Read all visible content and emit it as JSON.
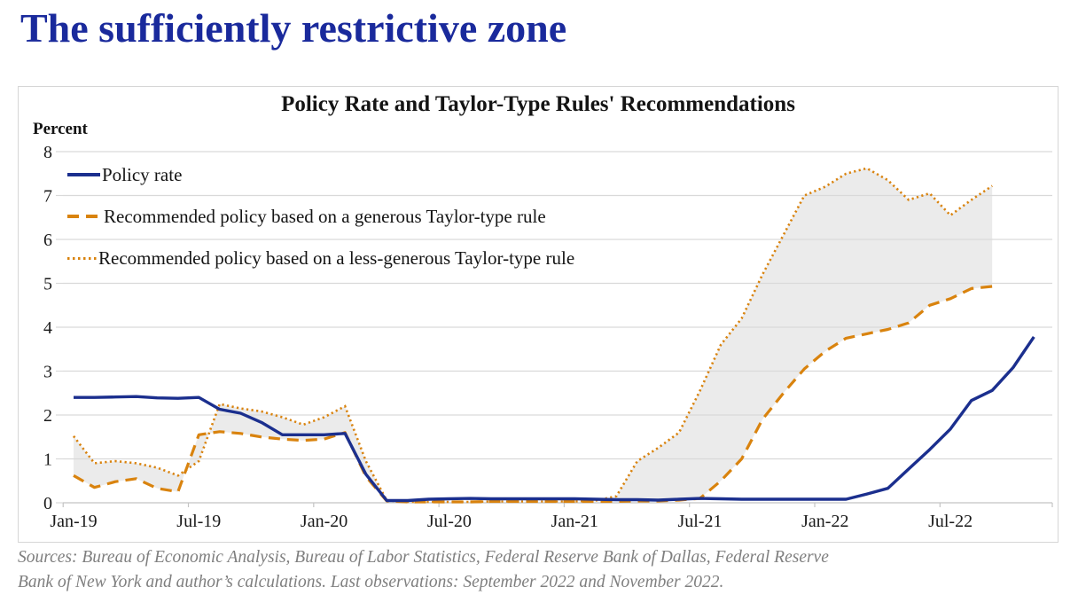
{
  "page": {
    "title": "The sufficiently restrictive zone"
  },
  "chart": {
    "title": "Policy Rate and Taylor-Type Rules' Recommendations",
    "y_unit": "Percent",
    "sources_line1": "Sources: Bureau of Economic Analysis, Bureau of Labor Statistics, Federal Reserve Bank of Dallas, Federal Reserve",
    "sources_line2": "Bank of New York and author’s calculations. Last observations: September 2022 and November 2022."
  },
  "colors": {
    "page_title": "#1a2a9c",
    "policy_line": "#1b2f8e",
    "taylor_lines": "#d9830e",
    "band_fill": "#ebebeb",
    "gridline": "#d9d9d9",
    "axis": "#c4c4c4",
    "sources_text": "#7f7f7f"
  },
  "chart_data": {
    "type": "line",
    "title": "Policy Rate and Taylor-Type Rules' Recommendations",
    "ylabel": "Percent",
    "xlabel": "",
    "ylim": [
      0,
      8
    ],
    "y_ticks": [
      0,
      1,
      2,
      3,
      4,
      5,
      6,
      7,
      8
    ],
    "x_frequency": "monthly",
    "x_start": "Jan-2019",
    "x_tick_labels": [
      "Jan-19",
      "Jul-19",
      "Jan-20",
      "Jul-20",
      "Jan-21",
      "Jul-21",
      "Jan-22",
      "Jul-22"
    ],
    "grid": "horizontal",
    "legend_position": "top-left",
    "band_fill": {
      "between": [
        1,
        2
      ],
      "color": "#ebebeb",
      "note": "shaded zone between the two Taylor-type rule recommendations, ends Sep-2022"
    },
    "series": [
      {
        "name": "Policy rate",
        "style": "solid",
        "color": "#1b2f8e",
        "last_observation": "November 2022",
        "values": [
          2.4,
          2.4,
          2.41,
          2.42,
          2.39,
          2.38,
          2.4,
          2.13,
          2.04,
          1.83,
          1.55,
          1.55,
          1.55,
          1.58,
          0.65,
          0.05,
          0.05,
          0.08,
          0.09,
          0.1,
          0.09,
          0.09,
          0.09,
          0.09,
          0.09,
          0.08,
          0.07,
          0.07,
          0.06,
          0.08,
          0.1,
          0.09,
          0.08,
          0.08,
          0.08,
          0.08,
          0.08,
          0.08,
          0.2,
          0.33,
          0.77,
          1.21,
          1.68,
          2.33,
          2.56,
          3.08,
          3.78
        ]
      },
      {
        "name": "Recommended policy based on a generous Taylor-type rule",
        "style": "dashed",
        "color": "#d9830e",
        "last_observation": "September 2022",
        "values": [
          0.62,
          0.35,
          0.48,
          0.55,
          0.33,
          0.25,
          1.55,
          1.62,
          1.58,
          1.5,
          1.45,
          1.42,
          1.45,
          1.6,
          0.6,
          0.04,
          0.02,
          0.02,
          0.02,
          0.02,
          0.03,
          0.03,
          0.03,
          0.03,
          0.03,
          0.03,
          0.03,
          0.04,
          0.04,
          0.06,
          0.1,
          0.5,
          1.0,
          1.9,
          2.5,
          3.05,
          3.45,
          3.75,
          3.85,
          3.95,
          4.1,
          4.5,
          4.65,
          4.88,
          4.93
        ]
      },
      {
        "name": "Recommended policy based on a less-generous Taylor-type rule",
        "style": "dotted",
        "color": "#d9830e",
        "last_observation": "September 2022",
        "values": [
          1.52,
          0.9,
          0.95,
          0.9,
          0.8,
          0.62,
          0.95,
          2.25,
          2.15,
          2.08,
          1.95,
          1.78,
          1.95,
          2.2,
          0.95,
          0.05,
          0.02,
          0.02,
          0.02,
          0.02,
          0.03,
          0.03,
          0.03,
          0.03,
          0.03,
          0.05,
          0.15,
          0.95,
          1.25,
          1.6,
          2.55,
          3.6,
          4.2,
          5.2,
          6.1,
          7.0,
          7.2,
          7.5,
          7.62,
          7.35,
          6.9,
          7.05,
          6.55,
          6.9,
          7.22
        ]
      }
    ]
  }
}
